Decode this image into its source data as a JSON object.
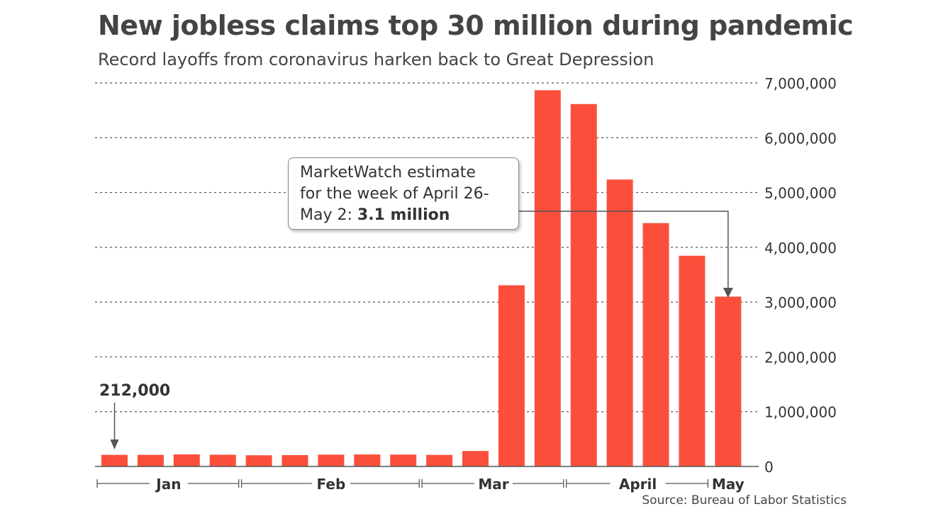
{
  "chart_data": {
    "type": "bar",
    "title": "New jobless claims top 30 million during pandemic",
    "subtitle": "Record layoffs from coronavirus harken back to Great Depression",
    "source": "Source: Bureau of Labor Statistics",
    "ylim": [
      0,
      7000000
    ],
    "yticks": [
      "0",
      "1,000,000",
      "2,000,000",
      "3,000,000",
      "4,000,000",
      "5,000,000",
      "6,000,000",
      "7,000,000"
    ],
    "ytick_values": [
      0,
      1000000,
      2000000,
      3000000,
      4000000,
      5000000,
      6000000,
      7000000
    ],
    "y_axis_side": "right",
    "grid": "horizontal dotted",
    "values": [
      212000,
      212000,
      220000,
      214000,
      204000,
      207000,
      216000,
      219000,
      217000,
      211000,
      282000,
      3307000,
      6867000,
      6615000,
      5237000,
      4442000,
      3846000,
      3100000
    ],
    "month_groups": [
      {
        "label": "Jan",
        "bars": 4
      },
      {
        "label": "Feb",
        "bars": 5
      },
      {
        "label": "Mar",
        "bars": 4
      },
      {
        "label": "April",
        "bars": 4
      },
      {
        "label": "May",
        "bars": 1
      }
    ],
    "first_label": "212,000",
    "annotation": {
      "text": "MarketWatch estimate for the week of April 26-May 2: ",
      "bold": "3.1 million",
      "line1": "MarketWatch estimate",
      "line2": "for the week of April 26-",
      "line3": "May 2: ",
      "target_bar_index": 17
    },
    "colors": {
      "bar": "#fc4f3b",
      "grid": "#555555",
      "text": "#333333"
    }
  }
}
